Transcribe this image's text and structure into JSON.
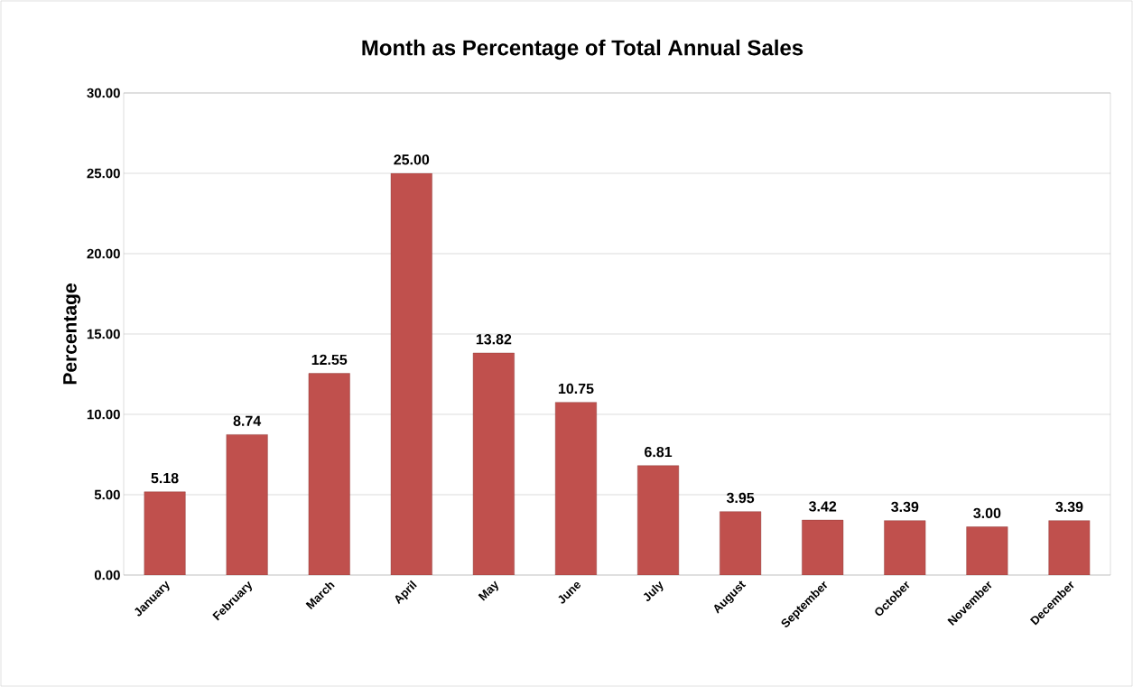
{
  "chart_data": {
    "type": "bar",
    "title": "Month as Percentage of Total Annual Sales",
    "ylabel": "Percentage",
    "categories": [
      "January",
      "February",
      "March",
      "April",
      "May",
      "June",
      "July",
      "August",
      "September",
      "October",
      "November",
      "December"
    ],
    "values": [
      5.18,
      8.74,
      12.55,
      25.0,
      13.82,
      10.75,
      6.81,
      3.95,
      3.42,
      3.39,
      3.0,
      3.39
    ],
    "value_labels": [
      "5.18",
      "8.74",
      "12.55",
      "25.00",
      "13.82",
      "10.75",
      "6.81",
      "3.95",
      "3.42",
      "3.39",
      "3.00",
      "3.39"
    ],
    "color": "#c0504d",
    "ylim": [
      0,
      30
    ],
    "yticks": [
      {
        "value": 0,
        "label": "0.00"
      },
      {
        "value": 5,
        "label": "5.00"
      },
      {
        "value": 10,
        "label": "10.00"
      },
      {
        "value": 15,
        "label": "15.00"
      },
      {
        "value": 20,
        "label": "20.00"
      },
      {
        "value": 25,
        "label": "25.00"
      },
      {
        "value": 30,
        "label": "30.00"
      }
    ],
    "grid": "y"
  }
}
